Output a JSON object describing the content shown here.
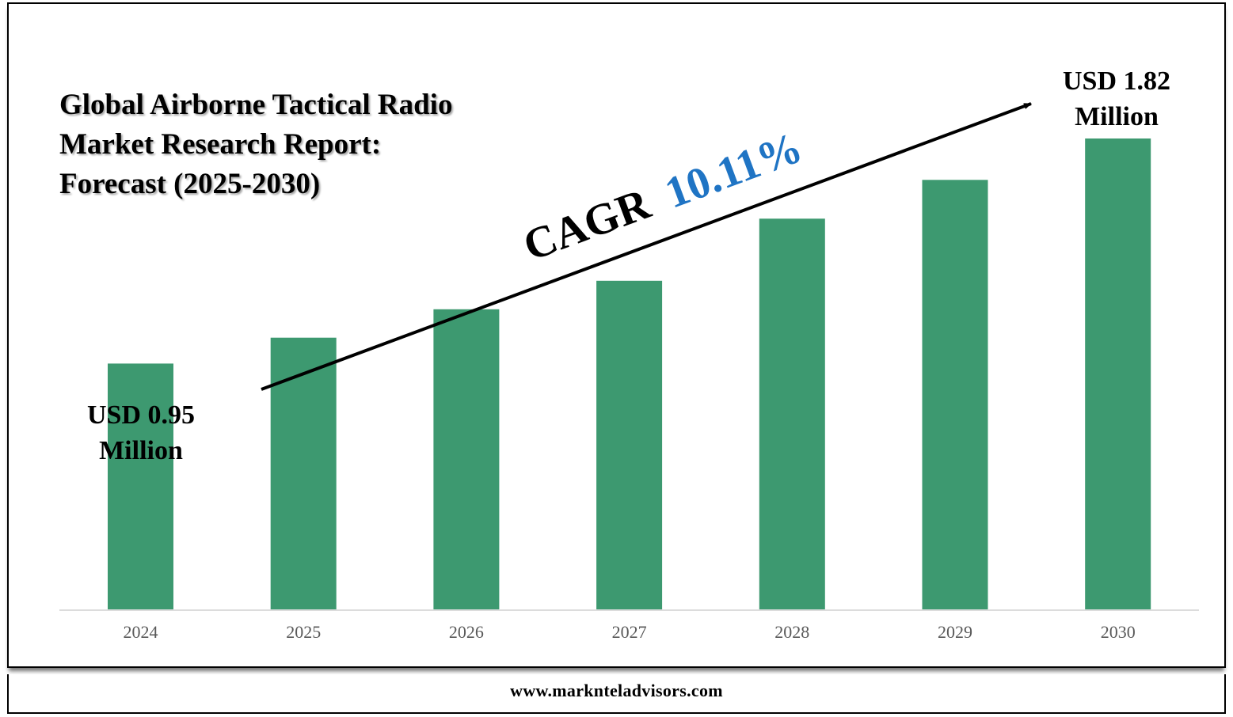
{
  "title_lines": [
    "Global Airborne Tactical Radio",
    "Market Research Report:",
    "Forecast (2025-2030)"
  ],
  "cagr": {
    "label": "CAGR",
    "value": "10.11%"
  },
  "start_label": {
    "line1": "USD 0.95",
    "line2": "Million"
  },
  "end_label": {
    "line1": "USD 1.82",
    "line2": "Million"
  },
  "footer": "www.marknteladvisors.com",
  "colors": {
    "bar": "#3d9970",
    "cagr_value": "#1f74c4",
    "axis_text": "#595959"
  },
  "chart_data": {
    "type": "bar",
    "categories": [
      "2024",
      "2025",
      "2026",
      "2027",
      "2028",
      "2029",
      "2030"
    ],
    "values": [
      0.95,
      1.05,
      1.16,
      1.27,
      1.51,
      1.66,
      1.82
    ],
    "title": "Global Airborne Tactical Radio Market Research Report: Forecast (2025-2030)",
    "xlabel": "",
    "ylabel": "",
    "ylim": [
      0,
      1.82
    ],
    "grid": false,
    "annotations": [
      "USD 0.95 Million",
      "USD 1.82 Million",
      "CAGR 10.11%"
    ]
  }
}
